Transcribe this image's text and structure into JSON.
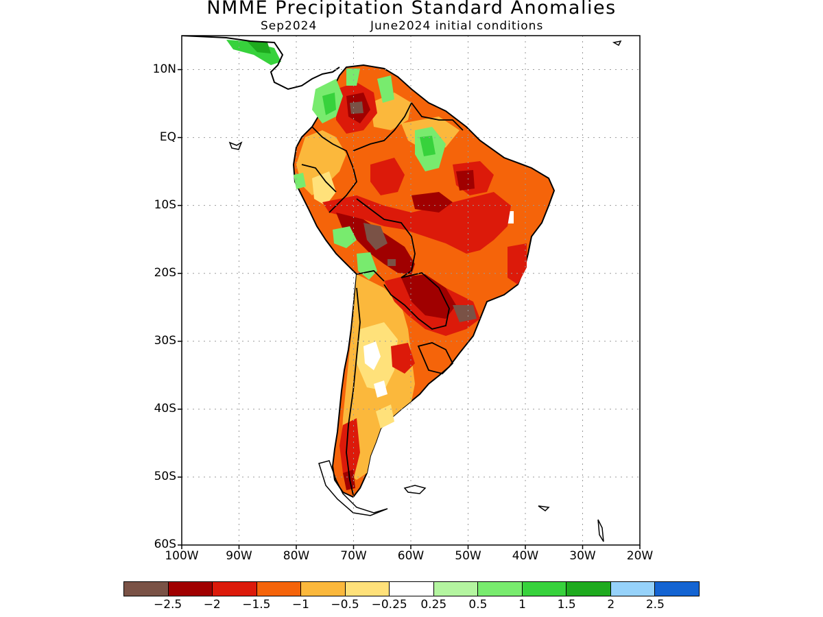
{
  "title": "NMME Precipitation Standard Anomalies",
  "subtitle_left": "Sep2024",
  "subtitle_right": "June2024 initial conditions",
  "map": {
    "lon_range": [
      -100,
      -20
    ],
    "lat_range": [
      -60,
      15
    ],
    "gridlines": "dotted",
    "lat_labels": [
      "10N",
      "EQ",
      "10S",
      "20S",
      "30S",
      "40S",
      "50S",
      "60S"
    ],
    "lat_values": [
      10,
      0,
      -10,
      -20,
      -30,
      -40,
      -50,
      -60
    ],
    "lon_labels": [
      "100W",
      "90W",
      "80W",
      "70W",
      "60W",
      "50W",
      "40W",
      "30W",
      "20W"
    ],
    "lon_values": [
      -100,
      -90,
      -80,
      -70,
      -60,
      -50,
      -40,
      -30,
      -20
    ]
  },
  "legend": {
    "colors": [
      "#7a5246",
      "#a00000",
      "#dc1a0a",
      "#f5640a",
      "#fbb83c",
      "#ffe17a",
      "#ffffff",
      "#b4f5a0",
      "#78eb6e",
      "#37d23c",
      "#1eaa1e",
      "#96d2fa",
      "#1464d2"
    ],
    "labels": [
      "-2.5",
      "-2",
      "-1.5",
      "-1",
      "-0.5",
      "-0.25",
      "0.25",
      "0.5",
      "1",
      "1.5",
      "2",
      "2.5"
    ]
  }
}
